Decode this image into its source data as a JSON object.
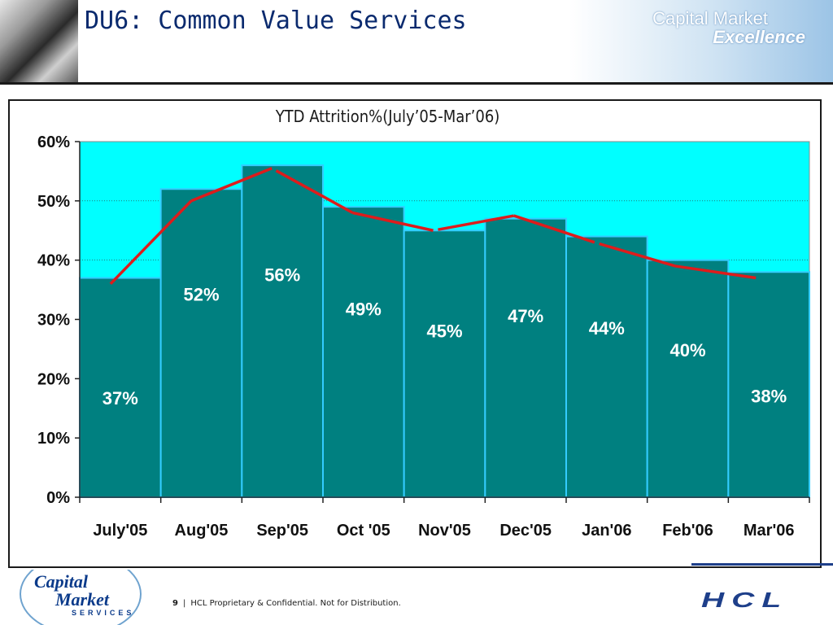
{
  "slide": {
    "title": "DU6: Common Value Services",
    "brand_line1": "Capital Market",
    "brand_line2": "Excellence",
    "page_number": "9",
    "separator": "|",
    "footer_text": "HCL Proprietary & Confidential. Not for Distribution.",
    "footer_logo_line1": "Capital",
    "footer_logo_line2": "Market",
    "footer_logo_line3": "SERVICES",
    "company_logo": "HCL"
  },
  "chart_data": {
    "type": "bar",
    "title": "YTD Attrition%(July’05-Mar’06)",
    "categories": [
      "July'05",
      "Aug'05",
      "Sep'05",
      "Oct '05",
      "Nov'05",
      "Dec'05",
      "Jan'06",
      "Feb'06",
      "Mar'06"
    ],
    "values": [
      37,
      52,
      56,
      49,
      45,
      47,
      44,
      40,
      38
    ],
    "data_labels": [
      "37%",
      "52%",
      "56%",
      "49%",
      "45%",
      "47%",
      "44%",
      "40%",
      "38%"
    ],
    "trend_line": [
      36,
      50,
      55.5,
      48,
      45,
      47.5,
      43,
      39,
      37
    ],
    "ylim": [
      0,
      60
    ],
    "yticks": [
      0,
      10,
      20,
      30,
      40,
      50,
      60
    ],
    "ytick_labels": [
      "0%",
      "10%",
      "20%",
      "30%",
      "40%",
      "50%",
      "60%"
    ],
    "grid": true,
    "colors": {
      "plot_background": "#00ffff",
      "bar_fill": "#008080",
      "bar_edge": "#33ccff",
      "trend_line": "#dd1c1c",
      "data_label": "#ffffff"
    }
  }
}
